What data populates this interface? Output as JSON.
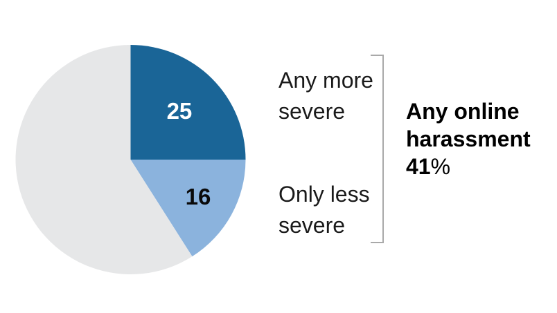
{
  "background_color": "#ffffff",
  "chart_data": {
    "type": "pie",
    "title": "",
    "start_angle_deg": 0,
    "direction": "clockwise",
    "total": 100,
    "legend_position": "right-labels",
    "slices": [
      {
        "name": "any-more-severe",
        "label": "Any more\nsevere",
        "value": 25,
        "value_label": "25",
        "color": "#1a6597",
        "value_label_color": "#ffffff"
      },
      {
        "name": "only-less-severe",
        "label": "Only less\nsevere",
        "value": 16,
        "value_label": "16",
        "color": "#8bb3dd",
        "value_label_color": "#0a0a0a"
      },
      {
        "name": "remainder",
        "label": "",
        "value": 59,
        "value_label": "",
        "color": "#e6e7e8",
        "value_label_color": "#000000"
      }
    ],
    "annotation": {
      "headline": "Any online\nharassment",
      "headline_value": "41",
      "headline_suffix": "%",
      "bracket_color": "#a9a9a9"
    }
  }
}
